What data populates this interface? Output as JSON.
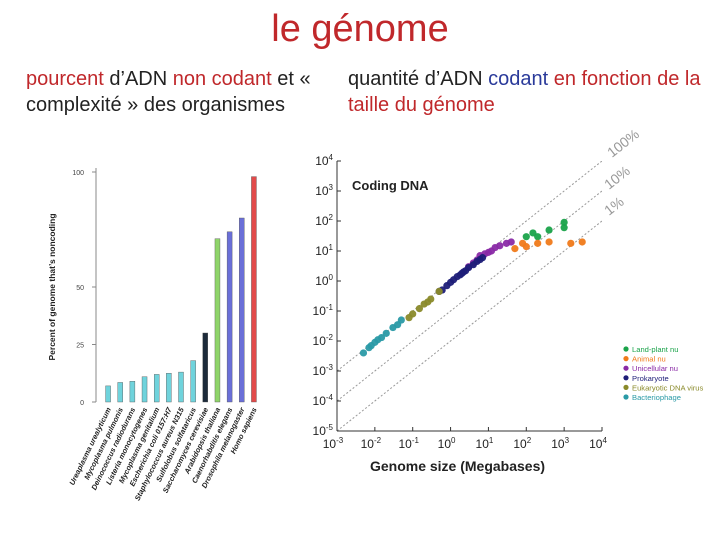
{
  "slide": {
    "title": "le génome",
    "left_caption": {
      "p1": "pourcent",
      "p2": " d’ADN ",
      "p3": "non codant",
      "p4": " et « complexité » des organismes"
    },
    "right_caption": {
      "p1": "quantité d’ADN ",
      "p2": "codant",
      "p3": " en fonction de la taille du génome"
    }
  },
  "colors": {
    "title": "#c0282b",
    "codant": "#2a3a9a"
  },
  "chart_data": [
    {
      "type": "bar",
      "ylabel": "Percent of genome that’s noncoding",
      "ylim": [
        0,
        100
      ],
      "yticks": [
        0,
        25,
        50,
        100
      ],
      "categories": [
        "Ureaplasma urealyticum",
        "Mycoplasma pulmonis",
        "Deinococcus radiodurans",
        "Listeria monocytogenes",
        "Mycoplasma genitalium",
        "Escherichia coli 0157:H7",
        "Staphylococcus aureus N315",
        "Sulfolobus solfataricus",
        "Saccharomyces cerevisiae",
        "Arabidopsis thaliana",
        "Caenorhabditis elegans",
        "Drosophila melanogaster",
        "Homo sapiens"
      ],
      "values": [
        7,
        8.5,
        9,
        11,
        12,
        12.5,
        13,
        18,
        30,
        71,
        74,
        80,
        98
      ],
      "colors": [
        "#6fd3dc",
        "#6fd3dc",
        "#6fd3dc",
        "#6fd3dc",
        "#6fd3dc",
        "#6fd3dc",
        "#6fd3dc",
        "#6fd3dc",
        "#1c2a3a",
        "#8fd46a",
        "#6a6fd8",
        "#6a6fd8",
        "#e24a4a"
      ]
    },
    {
      "type": "scatter",
      "title": "Coding DNA",
      "xlabel": "Genome size (Megabases)",
      "xscale": "log",
      "yscale": "log",
      "xlim": [
        0.001,
        10000
      ],
      "ylim": [
        1e-05,
        10000
      ],
      "xticks": [
        "10-3",
        "10-2",
        "10-1",
        "100",
        "101",
        "102",
        "103",
        "104"
      ],
      "yticks": [
        "10-5",
        "10-4",
        "10-3",
        "10-2",
        "10-1",
        "100",
        "101",
        "102",
        "103",
        "104"
      ],
      "reference_lines": [
        {
          "label": "100%",
          "ratio": 1
        },
        {
          "label": "10%",
          "ratio": 0.1
        },
        {
          "label": "1%",
          "ratio": 0.01
        }
      ],
      "legend_position": "right",
      "series": [
        {
          "name": "Land-plant nu",
          "color": "#1aa34a",
          "x": [
            200,
            400,
            1000,
            1000,
            100,
            150
          ],
          "y": [
            30,
            50,
            60,
            90,
            30,
            40
          ]
        },
        {
          "name": "Animal nu",
          "color": "#f07a1a",
          "x": [
            100,
            200,
            400,
            1500,
            3000,
            50,
            80
          ],
          "y": [
            14,
            18,
            20,
            18,
            20,
            12,
            18
          ]
        },
        {
          "name": "Unicellular nu",
          "color": "#8a2aa6",
          "x": [
            10,
            12,
            15,
            20,
            30,
            40,
            8,
            6,
            5,
            4,
            3
          ],
          "y": [
            9,
            10,
            13,
            15,
            18,
            20,
            8,
            7,
            5,
            4,
            3
          ]
        },
        {
          "name": "Prokaryote",
          "color": "#1e1e78",
          "x": [
            0.6,
            0.8,
            1,
            1.2,
            1.5,
            2,
            2.5,
            3,
            4,
            5,
            6,
            7,
            0.5,
            1.8,
            2.2
          ],
          "y": [
            0.5,
            0.7,
            0.9,
            1.1,
            1.4,
            1.8,
            2.2,
            2.8,
            3.5,
            4.5,
            5.2,
            6,
            0.45,
            1.6,
            2
          ]
        },
        {
          "name": "Eukaryotic DNA virus",
          "color": "#8a8a2a",
          "x": [
            0.1,
            0.15,
            0.2,
            0.3,
            0.5,
            0.08,
            0.25
          ],
          "y": [
            0.08,
            0.12,
            0.17,
            0.25,
            0.45,
            0.06,
            0.2
          ]
        },
        {
          "name": "Bacteriophage",
          "color": "#2a9aa6",
          "x": [
            0.005,
            0.008,
            0.01,
            0.015,
            0.02,
            0.03,
            0.04,
            0.05,
            0.012,
            0.007
          ],
          "y": [
            0.004,
            0.007,
            0.009,
            0.013,
            0.018,
            0.028,
            0.035,
            0.05,
            0.011,
            0.006
          ]
        }
      ]
    }
  ]
}
